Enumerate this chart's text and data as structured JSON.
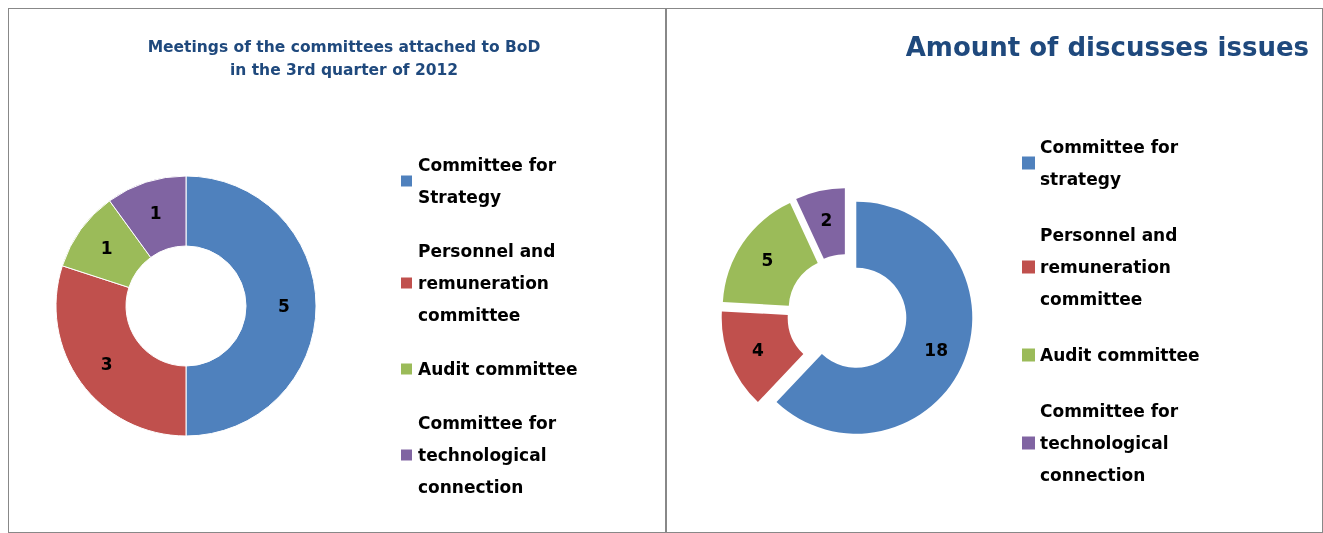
{
  "chart_data": [
    {
      "type": "donut",
      "title": "Meetings of the committees attached to BoD\nin the 3rd quarter of 2012",
      "categories": [
        "Committee for Strategy",
        "Personnel and remuneration committee",
        "Audit committee",
        "Committee for technological connection"
      ],
      "values": [
        5,
        3,
        1,
        1
      ],
      "colors": [
        "#4f81bd",
        "#c0504d",
        "#9bbb59",
        "#8064a2"
      ],
      "data_labels": true,
      "legend": "right"
    },
    {
      "type": "donut",
      "title": "Amount of discusses issues",
      "categories": [
        "Committee for strategy",
        "Personnel and remuneration committee",
        "Audit committee",
        "Committee for technological connection"
      ],
      "values": [
        18,
        4,
        5,
        2
      ],
      "colors": [
        "#4f81bd",
        "#c0504d",
        "#9bbb59",
        "#8064a2"
      ],
      "data_labels": true,
      "legend": "right"
    }
  ]
}
